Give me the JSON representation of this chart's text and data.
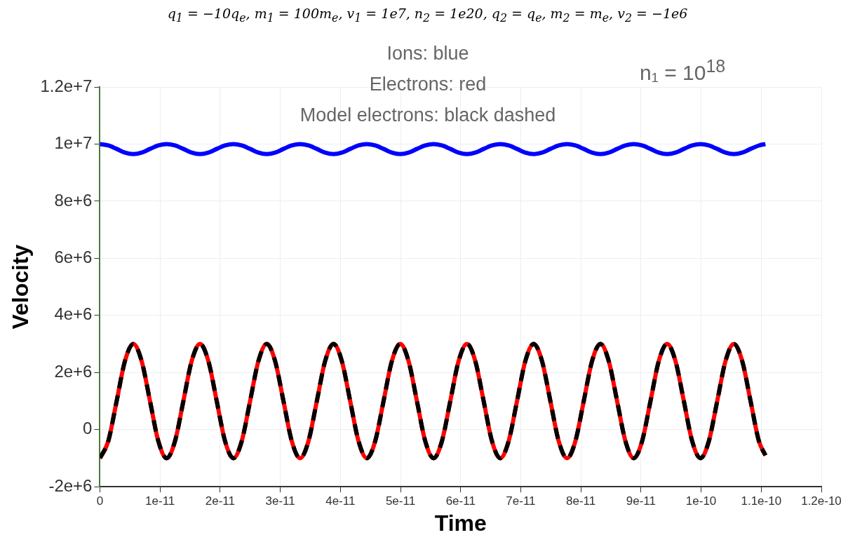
{
  "chart_data": {
    "type": "line",
    "title": "q$_{1}$ = −10q$_{e}$, m$_{1}$ = 100m$_{e}$, v$_{1}$ = 1e7, n$_{2}$ = 1e20, q$_{2}$ = q$_{e}$, m$_{2}$ = m$_{e}$, v$_{2}$ = −1e6",
    "annotations": [
      "Ions: blue",
      "Electrons: red",
      "Model electrons: black dashed",
      "n₁ = 10$^{18}$"
    ],
    "xlabel": "Time",
    "ylabel": "Velocity",
    "x": [
      0,
      1.39e-12,
      2.78e-12,
      4.16e-12,
      5.55e-12,
      6.94e-12,
      8.33e-12,
      9.71e-12,
      1.11e-11,
      1.249e-11,
      1.388e-11,
      1.526e-11,
      1.665e-11,
      1.804e-11,
      1.943e-11,
      2.081e-11,
      2.22e-11,
      2.359e-11,
      2.498e-11,
      2.636e-11,
      2.775e-11,
      2.914e-11,
      3.053e-11,
      3.191e-11,
      3.33e-11,
      3.469e-11,
      3.608e-11,
      3.746e-11,
      3.885e-11,
      4.024e-11,
      4.163e-11,
      4.301e-11,
      4.44e-11,
      4.579e-11,
      4.718e-11,
      4.856e-11,
      4.995e-11,
      5.134e-11,
      5.273e-11,
      5.411e-11,
      5.55e-11,
      5.689e-11,
      5.828e-11,
      5.966e-11,
      6.105e-11,
      6.244e-11,
      6.383e-11,
      6.521e-11,
      6.66e-11,
      6.799e-11,
      6.938e-11,
      7.076e-11,
      7.215e-11,
      7.354e-11,
      7.493e-11,
      7.631e-11,
      7.77e-11,
      7.909e-11,
      8.048e-11,
      8.186e-11,
      8.325e-11,
      8.464e-11,
      8.603e-11,
      8.741e-11,
      8.88e-11,
      9.019e-11,
      9.158e-11,
      9.296e-11,
      9.435e-11,
      9.574e-11,
      9.713e-11,
      9.851e-11,
      9.99e-11,
      1.0129e-10,
      1.0268e-10,
      1.0406e-10,
      1.0545e-10,
      1.0684e-10,
      1.0823e-10,
      1.0961e-10,
      1.107e-10
    ],
    "series": [
      {
        "color": "#0000ff",
        "line_style": "solid",
        "values": [
          10000000.0,
          9950000.0,
          9830000.0,
          9700000.0,
          9650000.0,
          9700000.0,
          9830000.0,
          9950000.0,
          10000000.0,
          9950000.0,
          9830000.0,
          9700000.0,
          9650000.0,
          9700000.0,
          9830000.0,
          9950000.0,
          10000000.0,
          9950000.0,
          9830000.0,
          9700000.0,
          9650000.0,
          9700000.0,
          9830000.0,
          9950000.0,
          10000000.0,
          9950000.0,
          9830000.0,
          9700000.0,
          9650000.0,
          9700000.0,
          9830000.0,
          9950000.0,
          10000000.0,
          9950000.0,
          9830000.0,
          9700000.0,
          9650000.0,
          9700000.0,
          9830000.0,
          9950000.0,
          10000000.0,
          9950000.0,
          9830000.0,
          9700000.0,
          9650000.0,
          9700000.0,
          9830000.0,
          9950000.0,
          10000000.0,
          9950000.0,
          9830000.0,
          9700000.0,
          9650000.0,
          9700000.0,
          9830000.0,
          9950000.0,
          10000000.0,
          9950000.0,
          9830000.0,
          9700000.0,
          9650000.0,
          9700000.0,
          9830000.0,
          9950000.0,
          10000000.0,
          9950000.0,
          9830000.0,
          9700000.0,
          9650000.0,
          9700000.0,
          9830000.0,
          9950000.0,
          10000000.0,
          9950000.0,
          9830000.0,
          9700000.0,
          9650000.0,
          9700000.0,
          9830000.0,
          9950000.0,
          10000000.0
        ]
      },
      {
        "color": "#ff0000",
        "line_style": "solid",
        "values": [
          -1000000.0,
          -400000.0,
          1000000.0,
          2400000.0,
          3000000.0,
          2400000.0,
          1000000.0,
          -400000.0,
          -1000000.0,
          -400000.0,
          1000000.0,
          2400000.0,
          3000000.0,
          2400000.0,
          1000000.0,
          -400000.0,
          -1000000.0,
          -400000.0,
          1000000.0,
          2400000.0,
          3000000.0,
          2400000.0,
          1000000.0,
          -400000.0,
          -1000000.0,
          -400000.0,
          1000000.0,
          2400000.0,
          3000000.0,
          2400000.0,
          1000000.0,
          -400000.0,
          -1000000.0,
          -400000.0,
          1000000.0,
          2400000.0,
          3000000.0,
          2400000.0,
          1000000.0,
          -400000.0,
          -1000000.0,
          -400000.0,
          1000000.0,
          2400000.0,
          3000000.0,
          2400000.0,
          1000000.0,
          -400000.0,
          -1000000.0,
          -400000.0,
          1000000.0,
          2400000.0,
          3000000.0,
          2400000.0,
          1000000.0,
          -400000.0,
          -1000000.0,
          -400000.0,
          1000000.0,
          2400000.0,
          3000000.0,
          2400000.0,
          1000000.0,
          -400000.0,
          -1000000.0,
          -400000.0,
          1000000.0,
          2400000.0,
          3000000.0,
          2400000.0,
          1000000.0,
          -400000.0,
          -1000000.0,
          -400000.0,
          1000000.0,
          2400000.0,
          3000000.0,
          2400000.0,
          1000000.0,
          -400000.0,
          -900000.0
        ]
      },
      {
        "color": "#000000",
        "line_style": "dashed",
        "values": [
          -1000000.0,
          -400000.0,
          1000000.0,
          2400000.0,
          3000000.0,
          2400000.0,
          1000000.0,
          -400000.0,
          -1000000.0,
          -400000.0,
          1000000.0,
          2400000.0,
          3000000.0,
          2400000.0,
          1000000.0,
          -400000.0,
          -1000000.0,
          -400000.0,
          1000000.0,
          2400000.0,
          3000000.0,
          2400000.0,
          1000000.0,
          -400000.0,
          -1000000.0,
          -400000.0,
          1000000.0,
          2400000.0,
          3000000.0,
          2400000.0,
          1000000.0,
          -400000.0,
          -1000000.0,
          -400000.0,
          1000000.0,
          2400000.0,
          3000000.0,
          2400000.0,
          1000000.0,
          -400000.0,
          -1000000.0,
          -400000.0,
          1000000.0,
          2400000.0,
          3000000.0,
          2400000.0,
          1000000.0,
          -400000.0,
          -1000000.0,
          -400000.0,
          1000000.0,
          2400000.0,
          3000000.0,
          2400000.0,
          1000000.0,
          -400000.0,
          -1000000.0,
          -400000.0,
          1000000.0,
          2400000.0,
          3000000.0,
          2400000.0,
          1000000.0,
          -400000.0,
          -1000000.0,
          -400000.0,
          1000000.0,
          2400000.0,
          3000000.0,
          2400000.0,
          1000000.0,
          -400000.0,
          -1000000.0,
          -400000.0,
          1000000.0,
          2400000.0,
          3000000.0,
          2400000.0,
          1000000.0,
          -400000.0,
          -900000.0
        ]
      }
    ],
    "xlim": [
      0,
      1.2e-10
    ],
    "xticks": [
      0,
      {
        "value": 1e-11,
        "label": "1e-11"
      },
      {
        "value": 2e-11,
        "label": "2e-11"
      },
      {
        "value": 3e-11,
        "label": "3e-11"
      },
      {
        "value": 4e-11,
        "label": "4e-11"
      },
      {
        "value": 5e-11,
        "label": "5e-11"
      },
      {
        "value": 6e-11,
        "label": "6e-11"
      },
      {
        "value": 7e-11,
        "label": "7e-11"
      },
      {
        "value": 8e-11,
        "label": "8e-11"
      },
      {
        "value": 9e-11,
        "label": "9e-11"
      },
      {
        "value": 1e-10,
        "label": "1e-10"
      },
      {
        "value": 1.1e-10,
        "label": "1.1e-10"
      },
      {
        "value": 1.2e-10,
        "label": "1.2e-10"
      }
    ],
    "ylim": [
      -2000000.0,
      12000000.0
    ],
    "yticks": [
      {
        "value": -2000000.0,
        "label": "-2e+6"
      },
      0,
      {
        "value": 2000000.0,
        "label": "2e+6"
      },
      {
        "value": 4000000.0,
        "label": "4e+6"
      },
      {
        "value": 6000000.0,
        "label": "6e+6"
      },
      {
        "value": 8000000.0,
        "label": "8e+6"
      },
      {
        "value": 10000000.0,
        "label": "1e+7"
      },
      {
        "value": 12000000.0,
        "label": "1.2e+7"
      }
    ],
    "grid": true,
    "legend": false,
    "marker": "none"
  }
}
